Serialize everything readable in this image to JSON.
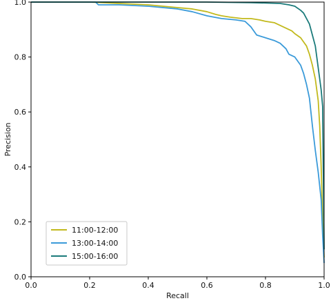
{
  "chart_data": {
    "type": "line",
    "title": "",
    "xlabel": "Recall",
    "ylabel": "Precision",
    "xlim": [
      0,
      1
    ],
    "ylim": [
      0,
      1
    ],
    "xticks": [
      "0.0",
      "0.2",
      "0.4",
      "0.6",
      "0.8",
      "1.0"
    ],
    "yticks": [
      "0.0",
      "0.2",
      "0.4",
      "0.6",
      "0.8",
      "1.0"
    ],
    "grid": false,
    "legend_position": "lower-left",
    "series": [
      {
        "name": "11:00-12:00",
        "color": "#c2b91c",
        "points": [
          [
            0.0,
            1.0
          ],
          [
            0.1,
            1.0
          ],
          [
            0.2,
            1.0
          ],
          [
            0.3,
            0.995
          ],
          [
            0.4,
            0.99
          ],
          [
            0.45,
            0.985
          ],
          [
            0.5,
            0.98
          ],
          [
            0.55,
            0.975
          ],
          [
            0.6,
            0.965
          ],
          [
            0.63,
            0.955
          ],
          [
            0.65,
            0.95
          ],
          [
            0.68,
            0.945
          ],
          [
            0.72,
            0.94
          ],
          [
            0.75,
            0.94
          ],
          [
            0.78,
            0.935
          ],
          [
            0.8,
            0.93
          ],
          [
            0.83,
            0.925
          ],
          [
            0.85,
            0.915
          ],
          [
            0.87,
            0.905
          ],
          [
            0.89,
            0.895
          ],
          [
            0.9,
            0.885
          ],
          [
            0.92,
            0.87
          ],
          [
            0.93,
            0.855
          ],
          [
            0.94,
            0.84
          ],
          [
            0.95,
            0.81
          ],
          [
            0.96,
            0.77
          ],
          [
            0.97,
            0.72
          ],
          [
            0.975,
            0.68
          ],
          [
            0.98,
            0.64
          ],
          [
            0.985,
            0.55
          ],
          [
            0.99,
            0.4
          ],
          [
            0.995,
            0.2
          ],
          [
            1.0,
            0.07
          ]
        ]
      },
      {
        "name": "13:00-14:00",
        "color": "#3a9ad9",
        "points": [
          [
            0.0,
            1.0
          ],
          [
            0.1,
            1.0
          ],
          [
            0.2,
            1.0
          ],
          [
            0.22,
            1.0
          ],
          [
            0.23,
            0.99
          ],
          [
            0.3,
            0.99
          ],
          [
            0.4,
            0.985
          ],
          [
            0.5,
            0.975
          ],
          [
            0.55,
            0.965
          ],
          [
            0.6,
            0.95
          ],
          [
            0.65,
            0.94
          ],
          [
            0.7,
            0.935
          ],
          [
            0.73,
            0.93
          ],
          [
            0.75,
            0.91
          ],
          [
            0.77,
            0.88
          ],
          [
            0.8,
            0.87
          ],
          [
            0.83,
            0.86
          ],
          [
            0.85,
            0.85
          ],
          [
            0.87,
            0.83
          ],
          [
            0.88,
            0.81
          ],
          [
            0.9,
            0.8
          ],
          [
            0.92,
            0.77
          ],
          [
            0.93,
            0.74
          ],
          [
            0.94,
            0.7
          ],
          [
            0.95,
            0.65
          ],
          [
            0.96,
            0.55
          ],
          [
            0.97,
            0.46
          ],
          [
            0.98,
            0.38
          ],
          [
            0.99,
            0.28
          ],
          [
            0.995,
            0.15
          ],
          [
            1.0,
            0.05
          ]
        ]
      },
      {
        "name": "15:00-16:00",
        "color": "#1a7a7a",
        "points": [
          [
            0.0,
            1.0
          ],
          [
            0.2,
            1.0
          ],
          [
            0.4,
            1.0
          ],
          [
            0.55,
            1.0
          ],
          [
            0.6,
            1.0
          ],
          [
            0.75,
            0.998
          ],
          [
            0.85,
            0.995
          ],
          [
            0.88,
            0.99
          ],
          [
            0.9,
            0.985
          ],
          [
            0.92,
            0.97
          ],
          [
            0.93,
            0.96
          ],
          [
            0.94,
            0.94
          ],
          [
            0.95,
            0.92
          ],
          [
            0.96,
            0.88
          ],
          [
            0.97,
            0.84
          ],
          [
            0.975,
            0.8
          ],
          [
            0.98,
            0.76
          ],
          [
            0.985,
            0.72
          ],
          [
            0.99,
            0.68
          ],
          [
            0.995,
            0.62
          ],
          [
            1.0,
            0.1
          ]
        ]
      }
    ]
  }
}
